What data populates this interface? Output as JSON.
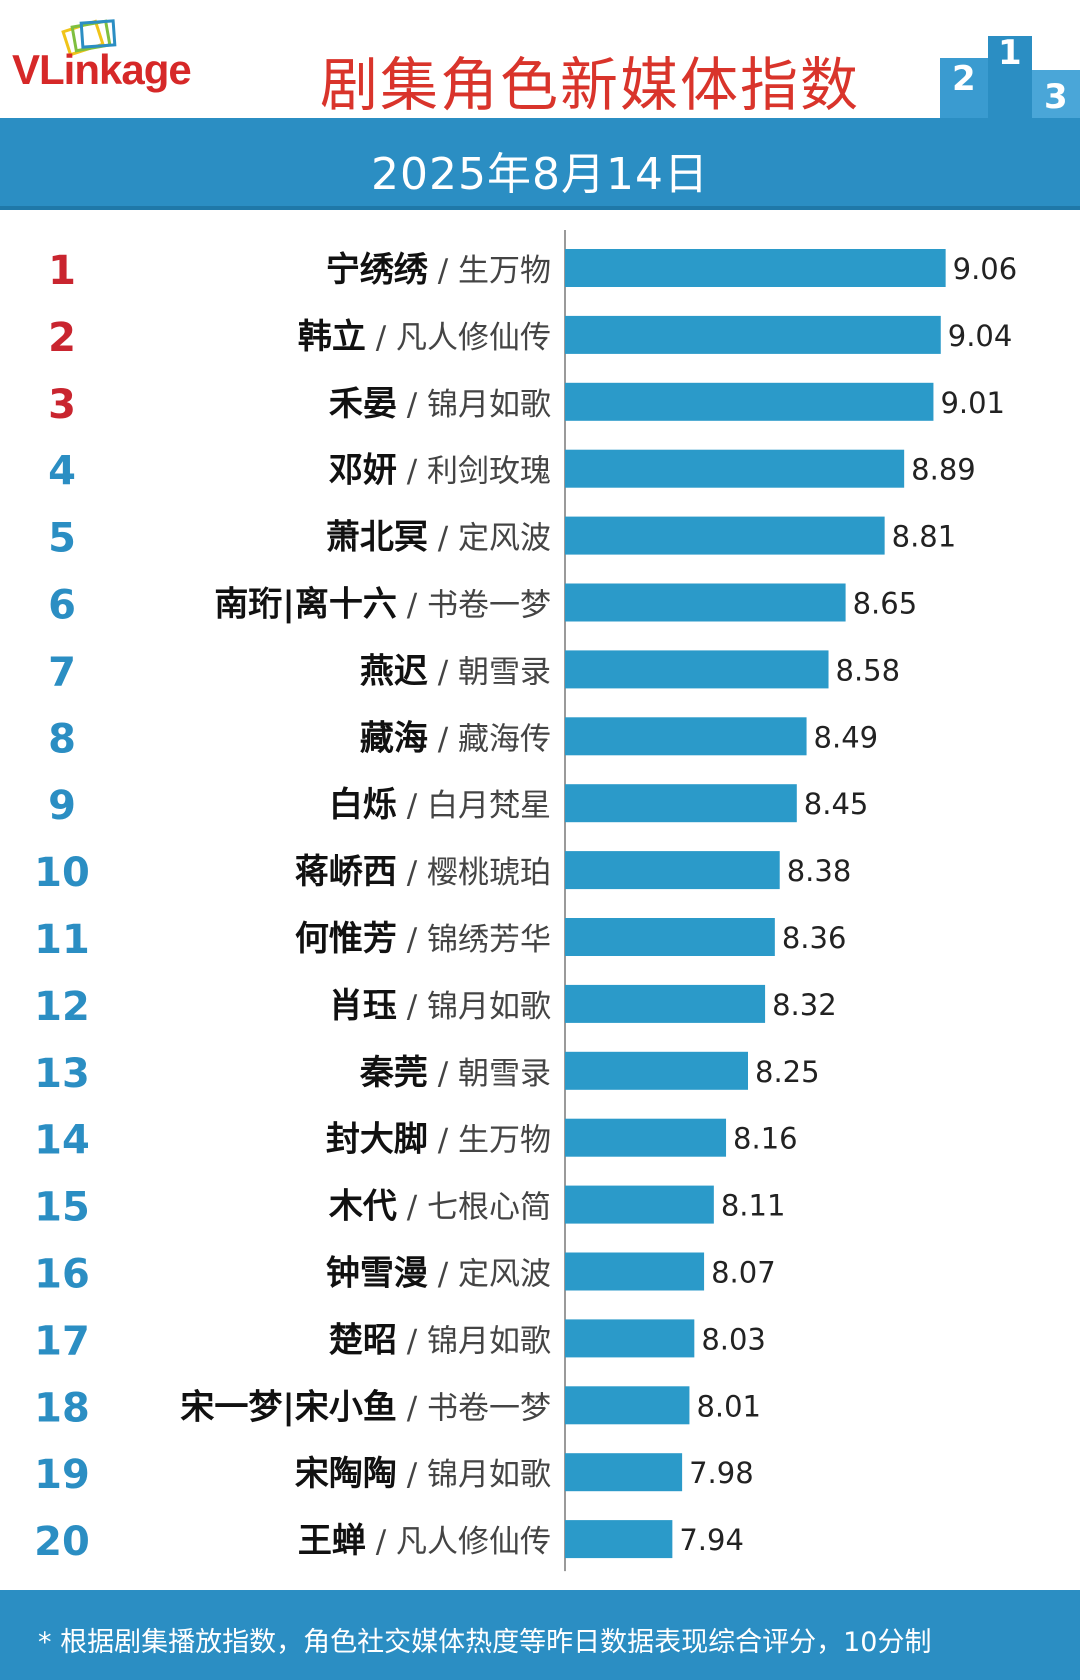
{
  "header": {
    "logo": "VLinkage",
    "title": "剧集角色新媒体指数"
  },
  "date": "2025年8月14日",
  "chart_data": {
    "type": "bar",
    "orientation": "horizontal",
    "xlim": [
      7.5,
      9.1
    ],
    "grid": false,
    "legend": "none",
    "colors": {
      "bar": "#2b9ac9",
      "rank_top3": "#c9252f",
      "rank_rest": "#2b8ec3"
    },
    "rows": [
      {
        "rank": "1",
        "name": "宁绣绣",
        "drama": "生万物",
        "value": 9.06,
        "label": "9.06"
      },
      {
        "rank": "2",
        "name": "韩立",
        "drama": "凡人修仙传",
        "value": 9.04,
        "label": "9.04"
      },
      {
        "rank": "3",
        "name": "禾晏",
        "drama": "锦月如歌",
        "value": 9.01,
        "label": "9.01"
      },
      {
        "rank": "4",
        "name": "邓妍",
        "drama": "利剑玫瑰",
        "value": 8.89,
        "label": "8.89"
      },
      {
        "rank": "5",
        "name": "萧北冥",
        "drama": "定风波",
        "value": 8.81,
        "label": "8.81"
      },
      {
        "rank": "6",
        "name": "南珩|离十六",
        "drama": "书卷一梦",
        "value": 8.65,
        "label": "8.65"
      },
      {
        "rank": "7",
        "name": "燕迟",
        "drama": "朝雪录",
        "value": 8.58,
        "label": "8.58"
      },
      {
        "rank": "8",
        "name": "藏海",
        "drama": "藏海传",
        "value": 8.49,
        "label": "8.49"
      },
      {
        "rank": "9",
        "name": "白烁",
        "drama": "白月梵星",
        "value": 8.45,
        "label": "8.45"
      },
      {
        "rank": "10",
        "name": "蒋峤西",
        "drama": "樱桃琥珀",
        "value": 8.38,
        "label": "8.38"
      },
      {
        "rank": "11",
        "name": "何惟芳",
        "drama": "锦绣芳华",
        "value": 8.36,
        "label": "8.36"
      },
      {
        "rank": "12",
        "name": "肖珏",
        "drama": "锦月如歌",
        "value": 8.32,
        "label": "8.32"
      },
      {
        "rank": "13",
        "name": "秦莞",
        "drama": "朝雪录",
        "value": 8.25,
        "label": "8.25"
      },
      {
        "rank": "14",
        "name": "封大脚",
        "drama": "生万物",
        "value": 8.16,
        "label": "8.16"
      },
      {
        "rank": "15",
        "name": "木代",
        "drama": "七根心简",
        "value": 8.11,
        "label": "8.11"
      },
      {
        "rank": "16",
        "name": "钟雪漫",
        "drama": "定风波",
        "value": 8.07,
        "label": "8.07"
      },
      {
        "rank": "17",
        "name": "楚昭",
        "drama": "锦月如歌",
        "value": 8.03,
        "label": "8.03"
      },
      {
        "rank": "18",
        "name": "宋一梦|宋小鱼",
        "drama": "书卷一梦",
        "value": 8.01,
        "label": "8.01"
      },
      {
        "rank": "19",
        "name": "宋陶陶",
        "drama": "锦月如歌",
        "value": 7.98,
        "label": "7.98"
      },
      {
        "rank": "20",
        "name": "王蝉",
        "drama": "凡人修仙传",
        "value": 7.94,
        "label": "7.94"
      }
    ]
  },
  "footer": {
    "note": "* 根据剧集播放指数，角色社交媒体热度等昨日数据表现综合评分，10分制"
  }
}
